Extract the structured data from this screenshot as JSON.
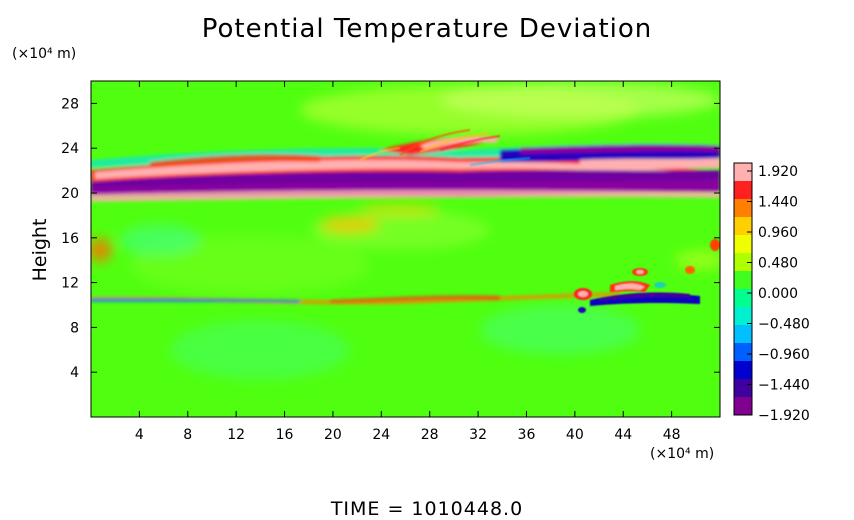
{
  "chart_data": {
    "type": "heatmap",
    "title": "Potential Temperature Deviation",
    "xlabel": "",
    "ylabel": "Height",
    "x_unit": "(×10⁴ m)",
    "y_unit": "(×10⁴ m)",
    "footer": "TIME = 1010448.0",
    "xlim": [
      0,
      52
    ],
    "ylim": [
      0,
      30
    ],
    "x_ticks": [
      4,
      8,
      12,
      16,
      20,
      24,
      28,
      32,
      36,
      40,
      44,
      48
    ],
    "x_tick_labels": [
      "4",
      "8",
      "12",
      "16",
      "20",
      "24",
      "28",
      "32",
      "36",
      "40",
      "44",
      "48"
    ],
    "y_ticks": [
      4,
      8,
      12,
      16,
      20,
      24,
      28
    ],
    "y_tick_labels": [
      "4",
      "8",
      "12",
      "16",
      "20",
      "24",
      "28"
    ],
    "colorbar": {
      "range": [
        -1.92,
        1.92
      ],
      "ticks": [
        1.92,
        1.44,
        0.96,
        0.48,
        0.0,
        -0.48,
        -0.96,
        -1.44,
        -1.92
      ],
      "tick_labels": [
        "1.920",
        "1.440",
        "0.960",
        "0.480",
        "0.000",
        "−0.480",
        "−0.960",
        "−1.440",
        "−1.920"
      ],
      "colors": [
        "#ffb0b0",
        "#ff2020",
        "#ff8000",
        "#ffd000",
        "#f0ff00",
        "#b0ff00",
        "#40ff20",
        "#00ff90",
        "#00f0d0",
        "#00c0ff",
        "#0060ff",
        "#0000d0",
        "#4000a0",
        "#800090"
      ]
    },
    "features": [
      {
        "name": "upper band",
        "x": [
          0,
          52
        ],
        "y": [
          20,
          23.5
        ],
        "value": "alternating +1.92 / -1.92"
      },
      {
        "name": "lower layer",
        "x": [
          0,
          52
        ],
        "y": [
          10,
          11
        ],
        "value": "weak positive / negative"
      },
      {
        "name": "right disturbance",
        "x": [
          38,
          52
        ],
        "y": [
          9.5,
          13.5
        ],
        "value": "-1.92 to +1.92"
      },
      {
        "name": "background",
        "x": [
          0,
          52
        ],
        "y": [
          0,
          30
        ],
        "value": "~0.3"
      }
    ]
  }
}
